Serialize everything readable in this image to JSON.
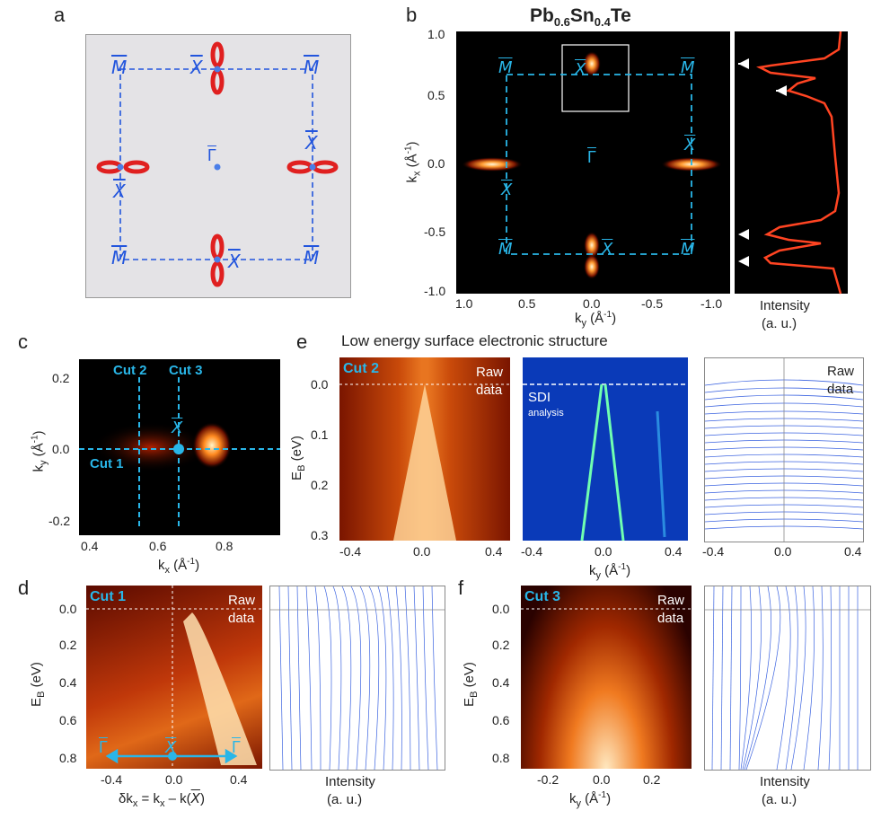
{
  "labels": {
    "a": "a",
    "b": "b",
    "c": "c",
    "d": "d",
    "e": "e",
    "f": "f"
  },
  "title_b": "Pb0.6Sn0.4Te",
  "title_b_parts": {
    "base1": "Pb",
    "sub1": "0.6",
    "base2": "Sn",
    "sub2": "0.4",
    "base3": "Te"
  },
  "title_e": "Low energy surface electronic structure",
  "symbols": {
    "M": "M",
    "X": "X",
    "Gamma": "Γ"
  },
  "panel_b": {
    "xticks": [
      "1.0",
      "0.5",
      "0.0",
      "-0.5",
      "-1.0"
    ],
    "yticks": [
      "1.0",
      "0.5",
      "0.0",
      "-0.5",
      "-1.0"
    ],
    "xlabel_base": "k",
    "xlabel_sub": "y",
    "xlabel_unit": " (Å",
    "xlabel_exp": "-1",
    "xlabel_close": ")",
    "ylabel_base": "k",
    "ylabel_sub": "x",
    "ylabel_unit": " (Å",
    "ylabel_exp": "-1",
    "ylabel_close": ")",
    "intensity_label": "Intensity",
    "intensity_unit": "(a. u.)"
  },
  "panel_c": {
    "xticks": [
      "0.4",
      "0.6",
      "0.8"
    ],
    "yticks": [
      "0.2",
      "0.0",
      "-0.2"
    ],
    "xlabel_base": "k",
    "xlabel_sub": "x",
    "xlabel_unit": " (Å",
    "xlabel_exp": "-1",
    "xlabel_close": ")",
    "ylabel_base": "k",
    "ylabel_sub": "y",
    "ylabel_unit": " (Å",
    "ylabel_exp": "-1",
    "ylabel_close": ")",
    "cut1": "Cut 1",
    "cut2": "Cut 2",
    "cut3": "Cut 3"
  },
  "panel_e": {
    "cut_label": "Cut 2",
    "raw1": "Raw",
    "raw2": "data",
    "sdi": "SDI",
    "sdi_sub": "analysis",
    "yticks": [
      "0.0",
      "0.1",
      "0.2",
      "0.3"
    ],
    "xticks": [
      "-0.4",
      "0.0",
      "0.4"
    ],
    "ylabel_base": "E",
    "ylabel_sub": "B",
    "ylabel_unit": " (eV)",
    "xlabel_base": "k",
    "xlabel_sub": "y",
    "xlabel_unit": " (Å",
    "xlabel_exp": "-1",
    "xlabel_close": ")"
  },
  "panel_d": {
    "cut_label": "Cut 1",
    "raw1": "Raw",
    "raw2": "data",
    "yticks": [
      "0.0",
      "0.2",
      "0.4",
      "0.6",
      "0.8"
    ],
    "xticks": [
      "-0.4",
      "0.0",
      "0.4"
    ],
    "ylabel_base": "E",
    "ylabel_sub": "B",
    "ylabel_unit": " (eV)",
    "xlabel": "δk",
    "xlabel_sub": "x",
    "xlabel_mid": " = k",
    "xlabel_rest": " – k(",
    "xlabel_end": ")",
    "intensity_label": "Intensity",
    "intensity_unit": "(a. u.)"
  },
  "panel_f": {
    "cut_label": "Cut 3",
    "raw1": "Raw",
    "raw2": "data",
    "yticks": [
      "0.0",
      "0.2",
      "0.4",
      "0.6",
      "0.8"
    ],
    "xticks": [
      "-0.2",
      "0.0",
      "0.2"
    ],
    "ylabel_base": "E",
    "ylabel_sub": "B",
    "ylabel_unit": " (eV)",
    "xlabel_base": "k",
    "xlabel_sub": "y",
    "xlabel_unit": " (Å",
    "xlabel_exp": "-1",
    "xlabel_close": ")",
    "intensity_label": "Intensity",
    "intensity_unit": "(a. u.)"
  },
  "colors": {
    "cyan": "#29b6e8",
    "blue": "#2255dd",
    "red": "#e02020",
    "mdc": "#3b63e0"
  }
}
